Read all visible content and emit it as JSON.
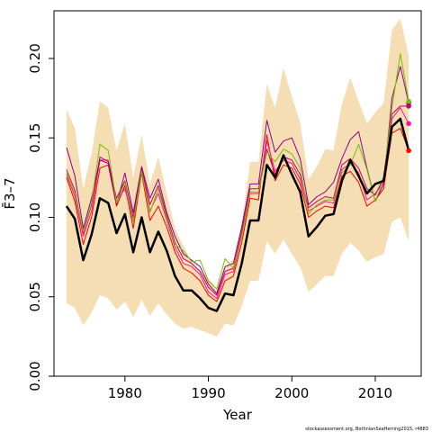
{
  "chart_data": {
    "type": "line",
    "title": "",
    "xlabel": "Year",
    "ylabel": "F̄3–7",
    "xlim": [
      1971.5,
      2015.5
    ],
    "ylim": [
      0,
      0.23
    ],
    "xticks": [
      1980,
      1990,
      2000,
      2010
    ],
    "yticks": [
      0.0,
      0.05,
      0.1,
      0.15,
      0.2
    ],
    "ytick_labels": [
      "0.00",
      "0.05",
      "0.10",
      "0.15",
      "0.20"
    ],
    "grid": false,
    "legend": "none",
    "credit": "stockassessment.org, BothnianSeaHerring2015, r4883",
    "band": {
      "color": "#f5deb3",
      "x": [
        1973,
        1974,
        1975,
        1976,
        1977,
        1978,
        1979,
        1980,
        1981,
        1982,
        1983,
        1984,
        1985,
        1986,
        1987,
        1988,
        1989,
        1990,
        1991,
        1992,
        1993,
        1994,
        1995,
        1996,
        1997,
        1998,
        1999,
        2000,
        2001,
        2002,
        2003,
        2004,
        2005,
        2006,
        2007,
        2008,
        2009,
        2010,
        2011,
        2012,
        2013,
        2014
      ],
      "upper": [
        0.168,
        0.156,
        0.118,
        0.14,
        0.173,
        0.169,
        0.142,
        0.159,
        0.125,
        0.152,
        0.121,
        0.138,
        0.115,
        0.093,
        0.082,
        0.072,
        0.066,
        0.062,
        0.055,
        0.069,
        0.074,
        0.096,
        0.135,
        0.135,
        0.184,
        0.169,
        0.194,
        0.176,
        0.16,
        0.124,
        0.132,
        0.143,
        0.142,
        0.171,
        0.188,
        0.173,
        0.159,
        0.166,
        0.172,
        0.218,
        0.225,
        0.202
      ],
      "lower": [
        0.046,
        0.043,
        0.032,
        0.04,
        0.051,
        0.049,
        0.042,
        0.047,
        0.037,
        0.048,
        0.038,
        0.046,
        0.039,
        0.033,
        0.03,
        0.031,
        0.029,
        0.027,
        0.025,
        0.033,
        0.032,
        0.044,
        0.06,
        0.06,
        0.085,
        0.077,
        0.086,
        0.077,
        0.069,
        0.053,
        0.058,
        0.063,
        0.063,
        0.077,
        0.084,
        0.079,
        0.072,
        0.075,
        0.077,
        0.097,
        0.1,
        0.085
      ]
    },
    "series": [
      {
        "color": "#000000",
        "width": 2.5,
        "end_marker": false,
        "values": [
          0.107,
          0.099,
          0.073,
          0.089,
          0.112,
          0.109,
          0.09,
          0.102,
          0.078,
          0.1,
          0.078,
          0.091,
          0.079,
          0.063,
          0.054,
          0.054,
          0.049,
          0.043,
          0.041,
          0.052,
          0.051,
          0.071,
          0.098,
          0.098,
          0.133,
          0.125,
          0.139,
          0.127,
          0.116,
          0.088,
          0.094,
          0.101,
          0.102,
          0.123,
          0.136,
          0.126,
          0.115,
          0.121,
          0.123,
          0.157,
          0.162,
          0.142
        ]
      },
      {
        "color": "#ff0000",
        "width": 1,
        "end_marker": true,
        "values": [
          0.125,
          0.11,
          0.083,
          0.1,
          0.131,
          0.133,
          0.107,
          0.12,
          0.093,
          0.128,
          0.098,
          0.107,
          0.094,
          0.078,
          0.068,
          0.065,
          0.06,
          0.051,
          0.047,
          0.06,
          0.063,
          0.084,
          0.112,
          0.111,
          0.152,
          0.123,
          0.133,
          0.131,
          0.121,
          0.1,
          0.104,
          0.107,
          0.106,
          0.126,
          0.129,
          0.122,
          0.107,
          0.111,
          0.118,
          0.153,
          0.156,
          0.142
        ]
      },
      {
        "color": "#ff1493",
        "width": 1,
        "end_marker": true,
        "values": [
          0.127,
          0.113,
          0.088,
          0.104,
          0.136,
          0.136,
          0.11,
          0.118,
          0.097,
          0.13,
          0.104,
          0.115,
          0.098,
          0.081,
          0.071,
          0.069,
          0.064,
          0.053,
          0.049,
          0.064,
          0.066,
          0.088,
          0.115,
          0.115,
          0.148,
          0.129,
          0.136,
          0.134,
          0.124,
          0.104,
          0.107,
          0.11,
          0.109,
          0.13,
          0.134,
          0.128,
          0.111,
          0.115,
          0.122,
          0.162,
          0.169,
          0.159
        ]
      },
      {
        "color": "#cc0066",
        "width": 1,
        "end_marker": true,
        "values": [
          0.13,
          0.117,
          0.09,
          0.108,
          0.138,
          0.135,
          0.112,
          0.123,
          0.1,
          0.131,
          0.108,
          0.12,
          0.101,
          0.084,
          0.074,
          0.071,
          0.066,
          0.056,
          0.051,
          0.066,
          0.068,
          0.091,
          0.118,
          0.118,
          0.143,
          0.127,
          0.138,
          0.136,
          0.127,
          0.106,
          0.11,
          0.113,
          0.112,
          0.133,
          0.137,
          0.131,
          0.118,
          0.114,
          0.125,
          0.165,
          0.17,
          0.17
        ]
      },
      {
        "color": "#8b008b",
        "width": 1,
        "end_marker": true,
        "values": [
          0.144,
          0.126,
          0.093,
          0.112,
          0.136,
          0.134,
          0.108,
          0.128,
          0.103,
          0.132,
          0.112,
          0.124,
          0.103,
          0.088,
          0.077,
          0.073,
          0.069,
          0.058,
          0.052,
          0.069,
          0.071,
          0.094,
          0.121,
          0.121,
          0.161,
          0.141,
          0.148,
          0.15,
          0.137,
          0.108,
          0.113,
          0.116,
          0.122,
          0.137,
          0.149,
          0.154,
          0.131,
          0.11,
          0.121,
          0.175,
          0.195,
          0.172
        ]
      },
      {
        "color": "#76c000",
        "width": 1,
        "end_marker": true,
        "values": [
          0.128,
          0.115,
          0.091,
          0.109,
          0.146,
          0.142,
          0.109,
          0.122,
          0.097,
          0.129,
          0.103,
          0.118,
          0.099,
          0.083,
          0.079,
          0.072,
          0.073,
          0.06,
          0.055,
          0.074,
          0.068,
          0.088,
          0.116,
          0.116,
          0.141,
          0.135,
          0.143,
          0.14,
          0.131,
          0.102,
          0.108,
          0.111,
          0.111,
          0.128,
          0.133,
          0.146,
          0.13,
          0.11,
          0.124,
          0.169,
          0.203,
          0.173
        ]
      }
    ]
  }
}
